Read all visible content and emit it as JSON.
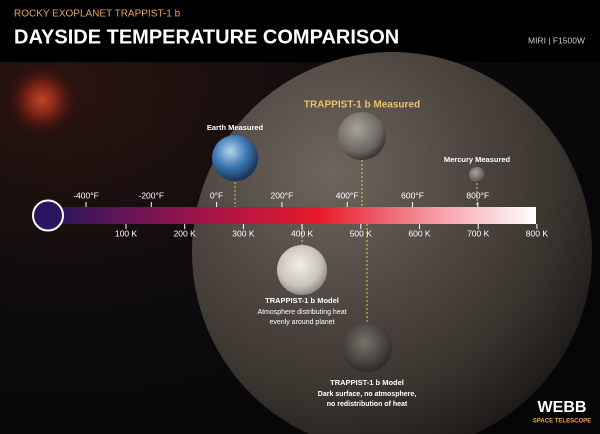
{
  "header": {
    "subtitle": "ROCKY EXOPLANET TRAPPIST-1 b",
    "title": "DAYSIDE TEMPERATURE COMPARISON",
    "instrument": "MIRI | F1500W"
  },
  "scale": {
    "fahrenheit": [
      "-400°F",
      "-200°F",
      "0°F",
      "200°F",
      "400°F",
      "600°F",
      "800°F"
    ],
    "kelvin": [
      "100 K",
      "200 K",
      "300 K",
      "400 K",
      "500 K",
      "600 K",
      "700 K",
      "800 K"
    ]
  },
  "planets": {
    "earth": "Earth Measured",
    "trappist": "TRAPPIST-1 b Measured",
    "mercury": "Mercury Measured"
  },
  "models": [
    {
      "name": "TRAPPIST-1 b Model",
      "lines": [
        "Atmosphere distributing heat",
        "evenly around planet"
      ]
    },
    {
      "name": "TRAPPIST-1 b Model",
      "lines": [
        "Dark surface, no atmosphere,",
        "no redistribution of heat"
      ]
    }
  ],
  "logo": {
    "name": "WEBB",
    "sub": "SPACE TELESCOPE"
  }
}
